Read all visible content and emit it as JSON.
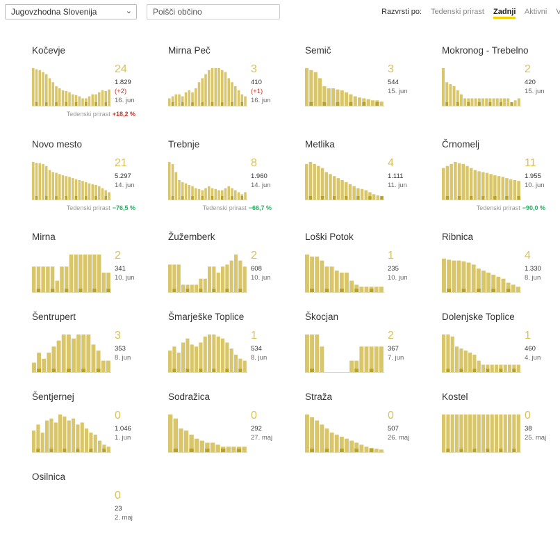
{
  "header": {
    "region_value": "Jugovzhodna Slovenija",
    "search_placeholder": "Poišči občino",
    "sort_label": "Razvrsti po:",
    "sort_options": [
      "Tedenski prirast",
      "Zadnji",
      "Aktivni",
      "V"
    ],
    "sort_active": "Zadnji",
    "accent_color": "#f2d200",
    "bar_color": "#d9c66a",
    "bar_dark_color": "#b7a22a"
  },
  "weekly_label": "Tedenski prirast",
  "municipalities": [
    {
      "name": "Kočevje",
      "last": "24",
      "total": "1.829",
      "delta": "(+2)",
      "date": "16. jun",
      "weekly": "+18,2 %",
      "trend": "up",
      "bars": [
        0.95,
        0.92,
        0.9,
        0.85,
        0.8,
        0.7,
        0.6,
        0.5,
        0.45,
        0.4,
        0.38,
        0.35,
        0.3,
        0.28,
        0.25,
        0.2,
        0.2,
        0.25,
        0.3,
        0.3,
        0.35,
        0.4,
        0.38,
        0.42
      ]
    },
    {
      "name": "Mirna Peč",
      "last": "3",
      "total": "410",
      "delta": "(+1)",
      "date": "16. jun",
      "bars": [
        0.2,
        0.25,
        0.3,
        0.3,
        0.25,
        0.35,
        0.4,
        0.35,
        0.45,
        0.6,
        0.7,
        0.8,
        0.9,
        0.95,
        0.95,
        0.95,
        0.9,
        0.85,
        0.7,
        0.6,
        0.5,
        0.4,
        0.3,
        0.25
      ]
    },
    {
      "name": "Semič",
      "last": "3",
      "total": "544",
      "date": "15. jun",
      "bars": [
        0.95,
        0.9,
        0.85,
        0.7,
        0.5,
        0.45,
        0.45,
        0.42,
        0.4,
        0.35,
        0.3,
        0.25,
        0.22,
        0.2,
        0.18,
        0.15,
        0.15,
        0.12
      ]
    },
    {
      "name": "Mokronog - Trebelno",
      "last": "2",
      "total": "420",
      "date": "15. jun",
      "bars": [
        0.95,
        0.6,
        0.55,
        0.5,
        0.4,
        0.3,
        0.2,
        0.2,
        0.2,
        0.2,
        0.2,
        0.2,
        0.2,
        0.2,
        0.2,
        0.2,
        0.2,
        0.2,
        0.2,
        0.1,
        0.15,
        0.2
      ]
    },
    {
      "name": "Novo mesto",
      "last": "21",
      "total": "5.297",
      "date": "14. jun",
      "weekly": "−76,5 %",
      "trend": "down",
      "bars": [
        0.95,
        0.93,
        0.92,
        0.9,
        0.85,
        0.75,
        0.7,
        0.68,
        0.65,
        0.62,
        0.6,
        0.58,
        0.55,
        0.52,
        0.5,
        0.48,
        0.45,
        0.42,
        0.4,
        0.38,
        0.35,
        0.3,
        0.25,
        0.2
      ]
    },
    {
      "name": "Trebnje",
      "last": "8",
      "total": "1.960",
      "date": "14. jun",
      "weekly": "−66,7 %",
      "trend": "down",
      "bars": [
        0.95,
        0.9,
        0.7,
        0.5,
        0.45,
        0.42,
        0.38,
        0.35,
        0.3,
        0.28,
        0.25,
        0.3,
        0.35,
        0.3,
        0.28,
        0.25,
        0.25,
        0.3,
        0.35,
        0.3,
        0.25,
        0.2,
        0.15,
        0.2
      ]
    },
    {
      "name": "Metlika",
      "last": "4",
      "total": "1.111",
      "date": "11. jun",
      "bars": [
        0.9,
        0.95,
        0.9,
        0.85,
        0.8,
        0.7,
        0.65,
        0.6,
        0.55,
        0.5,
        0.45,
        0.4,
        0.35,
        0.3,
        0.28,
        0.25,
        0.2,
        0.15,
        0.12,
        0.1
      ]
    },
    {
      "name": "Črnomelj",
      "last": "11",
      "total": "1.955",
      "date": "10. jun",
      "weekly": "−90,0 %",
      "trend": "down",
      "bars": [
        0.8,
        0.85,
        0.9,
        0.95,
        0.92,
        0.9,
        0.85,
        0.8,
        0.75,
        0.72,
        0.7,
        0.68,
        0.65,
        0.62,
        0.6,
        0.58,
        0.55,
        0.52,
        0.5,
        0.48
      ]
    },
    {
      "name": "Mirna",
      "last": "2",
      "total": "341",
      "date": "10. jun",
      "bars": [
        0.65,
        0.65,
        0.65,
        0.65,
        0.65,
        0.3,
        0.65,
        0.65,
        0.95,
        0.95,
        0.95,
        0.95,
        0.95,
        0.95,
        0.95,
        0.5,
        0.5
      ]
    },
    {
      "name": "Žužemberk",
      "last": "2",
      "total": "608",
      "date": "10. jun",
      "bars": [
        0.7,
        0.7,
        0.7,
        0.2,
        0.2,
        0.2,
        0.2,
        0.35,
        0.35,
        0.65,
        0.65,
        0.5,
        0.65,
        0.7,
        0.8,
        0.95,
        0.8,
        0.65
      ]
    },
    {
      "name": "Loški Potok",
      "last": "1",
      "total": "235",
      "date": "10. jun",
      "bars": [
        0.95,
        0.9,
        0.9,
        0.8,
        0.65,
        0.65,
        0.55,
        0.5,
        0.5,
        0.3,
        0.2,
        0.15,
        0.15,
        0.15,
        0.15,
        0.15
      ]
    },
    {
      "name": "Ribnica",
      "last": "4",
      "total": "1.330",
      "date": "8. jun",
      "bars": [
        0.85,
        0.82,
        0.8,
        0.8,
        0.78,
        0.75,
        0.7,
        0.6,
        0.55,
        0.5,
        0.45,
        0.4,
        0.35,
        0.25,
        0.2,
        0.15
      ]
    },
    {
      "name": "Šentrupert",
      "last": "3",
      "total": "353",
      "date": "8. jun",
      "bars": [
        0.25,
        0.5,
        0.35,
        0.5,
        0.65,
        0.8,
        0.95,
        0.95,
        0.85,
        0.95,
        0.95,
        0.95,
        0.7,
        0.55,
        0.3,
        0.3
      ]
    },
    {
      "name": "Šmarješke Toplice",
      "last": "1",
      "total": "534",
      "date": "8. jun",
      "bars": [
        0.55,
        0.65,
        0.5,
        0.75,
        0.85,
        0.7,
        0.65,
        0.75,
        0.9,
        0.95,
        0.95,
        0.9,
        0.85,
        0.75,
        0.6,
        0.45,
        0.35,
        0.3
      ]
    },
    {
      "name": "Škocjan",
      "last": "2",
      "total": "367",
      "date": "7. jun",
      "bars": [
        0.95,
        0.95,
        0.95,
        0.65,
        0.0,
        0.0,
        0.0,
        0.0,
        0.0,
        0.3,
        0.3,
        0.65,
        0.65,
        0.65,
        0.65,
        0.65
      ]
    },
    {
      "name": "Dolenjske Toplice",
      "last": "1",
      "total": "460",
      "date": "4. jun",
      "bars": [
        0.95,
        0.95,
        0.9,
        0.65,
        0.6,
        0.55,
        0.5,
        0.45,
        0.3,
        0.2,
        0.2,
        0.2,
        0.2,
        0.2,
        0.2,
        0.2,
        0.2,
        0.2
      ]
    },
    {
      "name": "Šentjernej",
      "last": "0",
      "total": "1.046",
      "date": "1. jun",
      "bars": [
        0.55,
        0.7,
        0.5,
        0.8,
        0.85,
        0.75,
        0.95,
        0.9,
        0.8,
        0.85,
        0.7,
        0.75,
        0.6,
        0.5,
        0.45,
        0.3,
        0.2,
        0.15
      ]
    },
    {
      "name": "Sodražica",
      "last": "0",
      "total": "292",
      "date": "27. maj",
      "bars": [
        0.95,
        0.85,
        0.6,
        0.55,
        0.45,
        0.35,
        0.3,
        0.25,
        0.25,
        0.2,
        0.15,
        0.15,
        0.15,
        0.15,
        0.15
      ]
    },
    {
      "name": "Straža",
      "last": "0",
      "total": "507",
      "date": "26. maj",
      "bars": [
        0.95,
        0.88,
        0.8,
        0.7,
        0.6,
        0.5,
        0.45,
        0.4,
        0.35,
        0.3,
        0.25,
        0.2,
        0.15,
        0.12,
        0.1,
        0.08
      ]
    },
    {
      "name": "Kostel",
      "last": "0",
      "total": "38",
      "date": "25. maj",
      "bars": [
        0.95,
        0.95,
        0.95,
        0.95,
        0.95,
        0.95,
        0.95,
        0.95,
        0.95,
        0.95,
        0.95,
        0.95,
        0.95,
        0.95,
        0.95,
        0.95,
        0.95,
        0.95
      ]
    },
    {
      "name": "Osilnica",
      "last": "0",
      "total": "23",
      "date": "2. maj",
      "bars": []
    }
  ]
}
